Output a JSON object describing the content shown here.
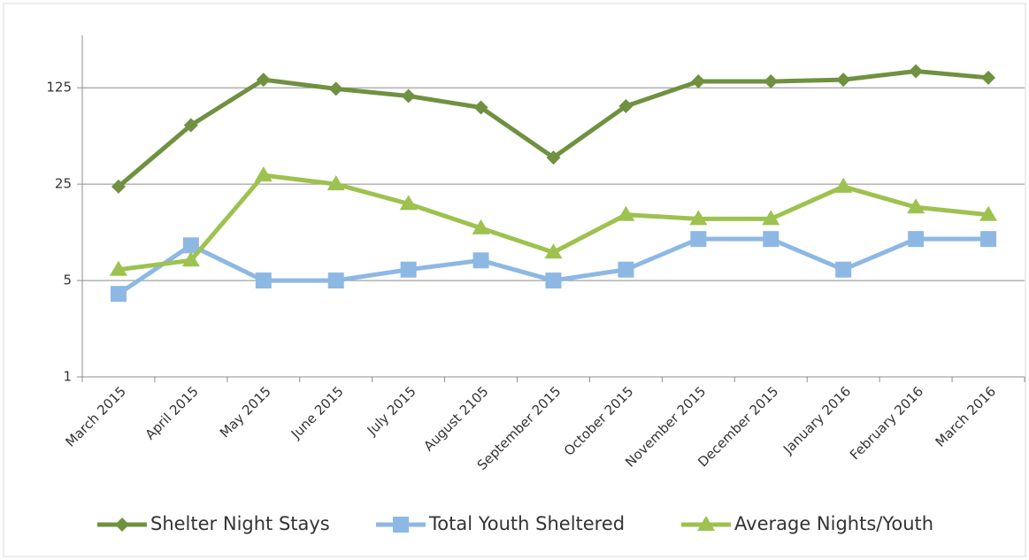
{
  "chart_data": {
    "type": "line",
    "categories": [
      "March 2015",
      "April 2015",
      "May 2015",
      "June 2015",
      "July 2015",
      "August 2105",
      "September 2015",
      "October 2015",
      "November 2015",
      "December 2015",
      "January 2016",
      "February 2016",
      "March 2016"
    ],
    "series": [
      {
        "name": "Shelter Night Stays",
        "color": "#6f9140",
        "marker": "diamond",
        "values": [
          24,
          67,
          143,
          123,
          109,
          90,
          39,
          92,
          139,
          139,
          143,
          165,
          148
        ]
      },
      {
        "name": "Total Youth Sheltered",
        "color": "#8db8e4",
        "marker": "square",
        "values": [
          4,
          9,
          5,
          5,
          6,
          7,
          5,
          6,
          10,
          10,
          6,
          10,
          10
        ]
      },
      {
        "name": "Average Nights/Youth",
        "color": "#9dc24f",
        "marker": "triangle",
        "values": [
          6,
          7,
          29,
          25,
          18,
          12,
          8,
          15,
          14,
          14,
          24,
          17,
          15
        ]
      }
    ],
    "ylim": [
      1,
      300
    ],
    "yticks": [
      1,
      5,
      25,
      125
    ],
    "yscale": "log",
    "grid": true,
    "legend": "bottom"
  }
}
